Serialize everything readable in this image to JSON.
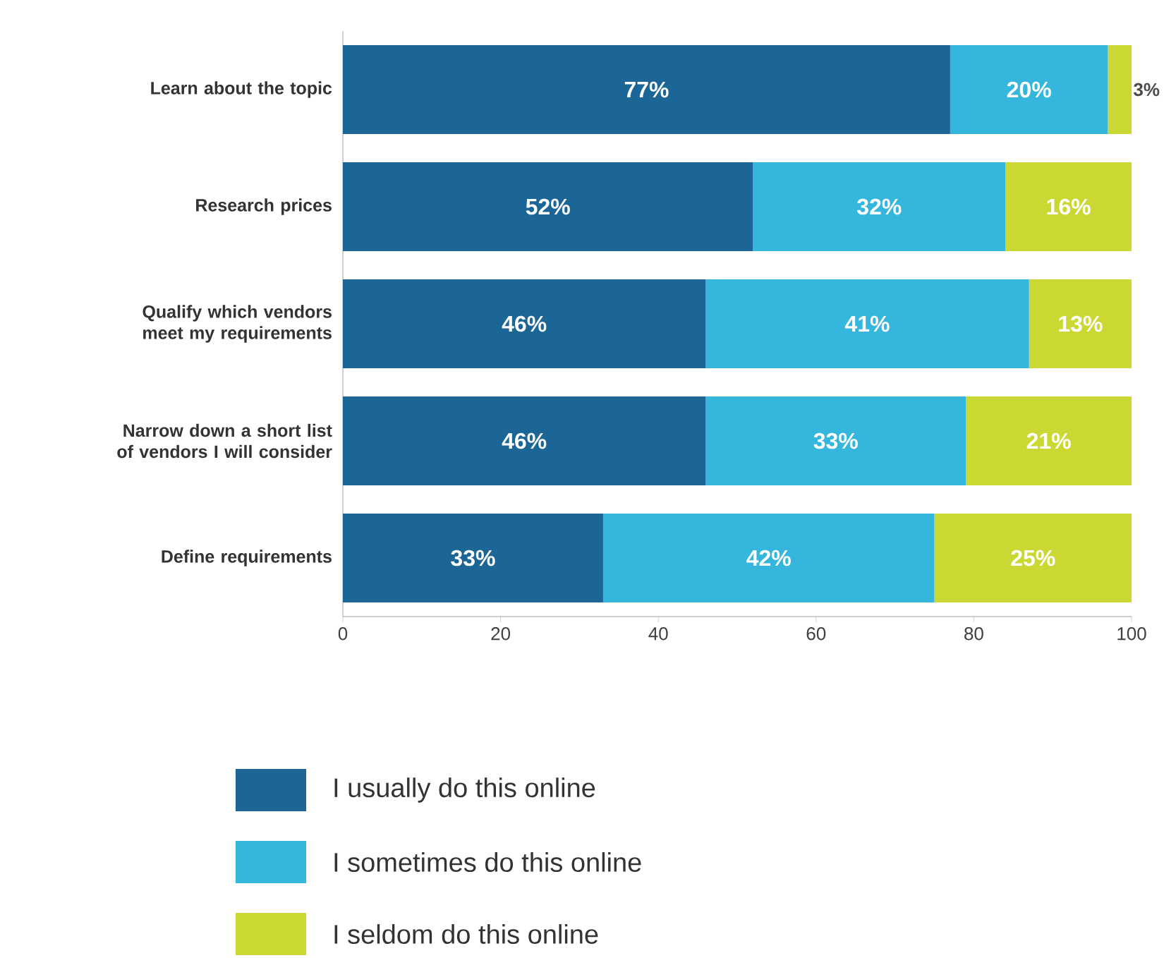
{
  "chart_data": {
    "type": "bar",
    "orientation": "horizontal",
    "stacked": true,
    "categories": [
      "Learn about the topic",
      "Research prices",
      "Qualify which vendors meet my requirements",
      "Narrow down a short list of vendors I will consider",
      "Define requirements"
    ],
    "series": [
      {
        "name": "I usually do this online",
        "color": "#1b6597",
        "values": [
          77,
          52,
          46,
          46,
          33
        ],
        "value_labels": [
          "77%",
          "52%",
          "46%",
          "46%",
          "33%"
        ]
      },
      {
        "name": "I sometimes do this online",
        "color": "#35b6dc",
        "values": [
          20,
          32,
          41,
          33,
          42
        ],
        "value_labels": [
          "20%",
          "32%",
          "41%",
          "33%",
          "42%"
        ]
      },
      {
        "name": "I seldom do this online",
        "color": "#cbd833",
        "values": [
          3,
          16,
          13,
          21,
          25
        ],
        "value_labels": [
          "3%",
          "16%",
          "13%",
          "21%",
          "25%"
        ]
      }
    ],
    "xlim": [
      0,
      100
    ],
    "xticks": [
      0,
      20,
      40,
      60,
      80,
      100
    ],
    "legend": "bottom"
  }
}
